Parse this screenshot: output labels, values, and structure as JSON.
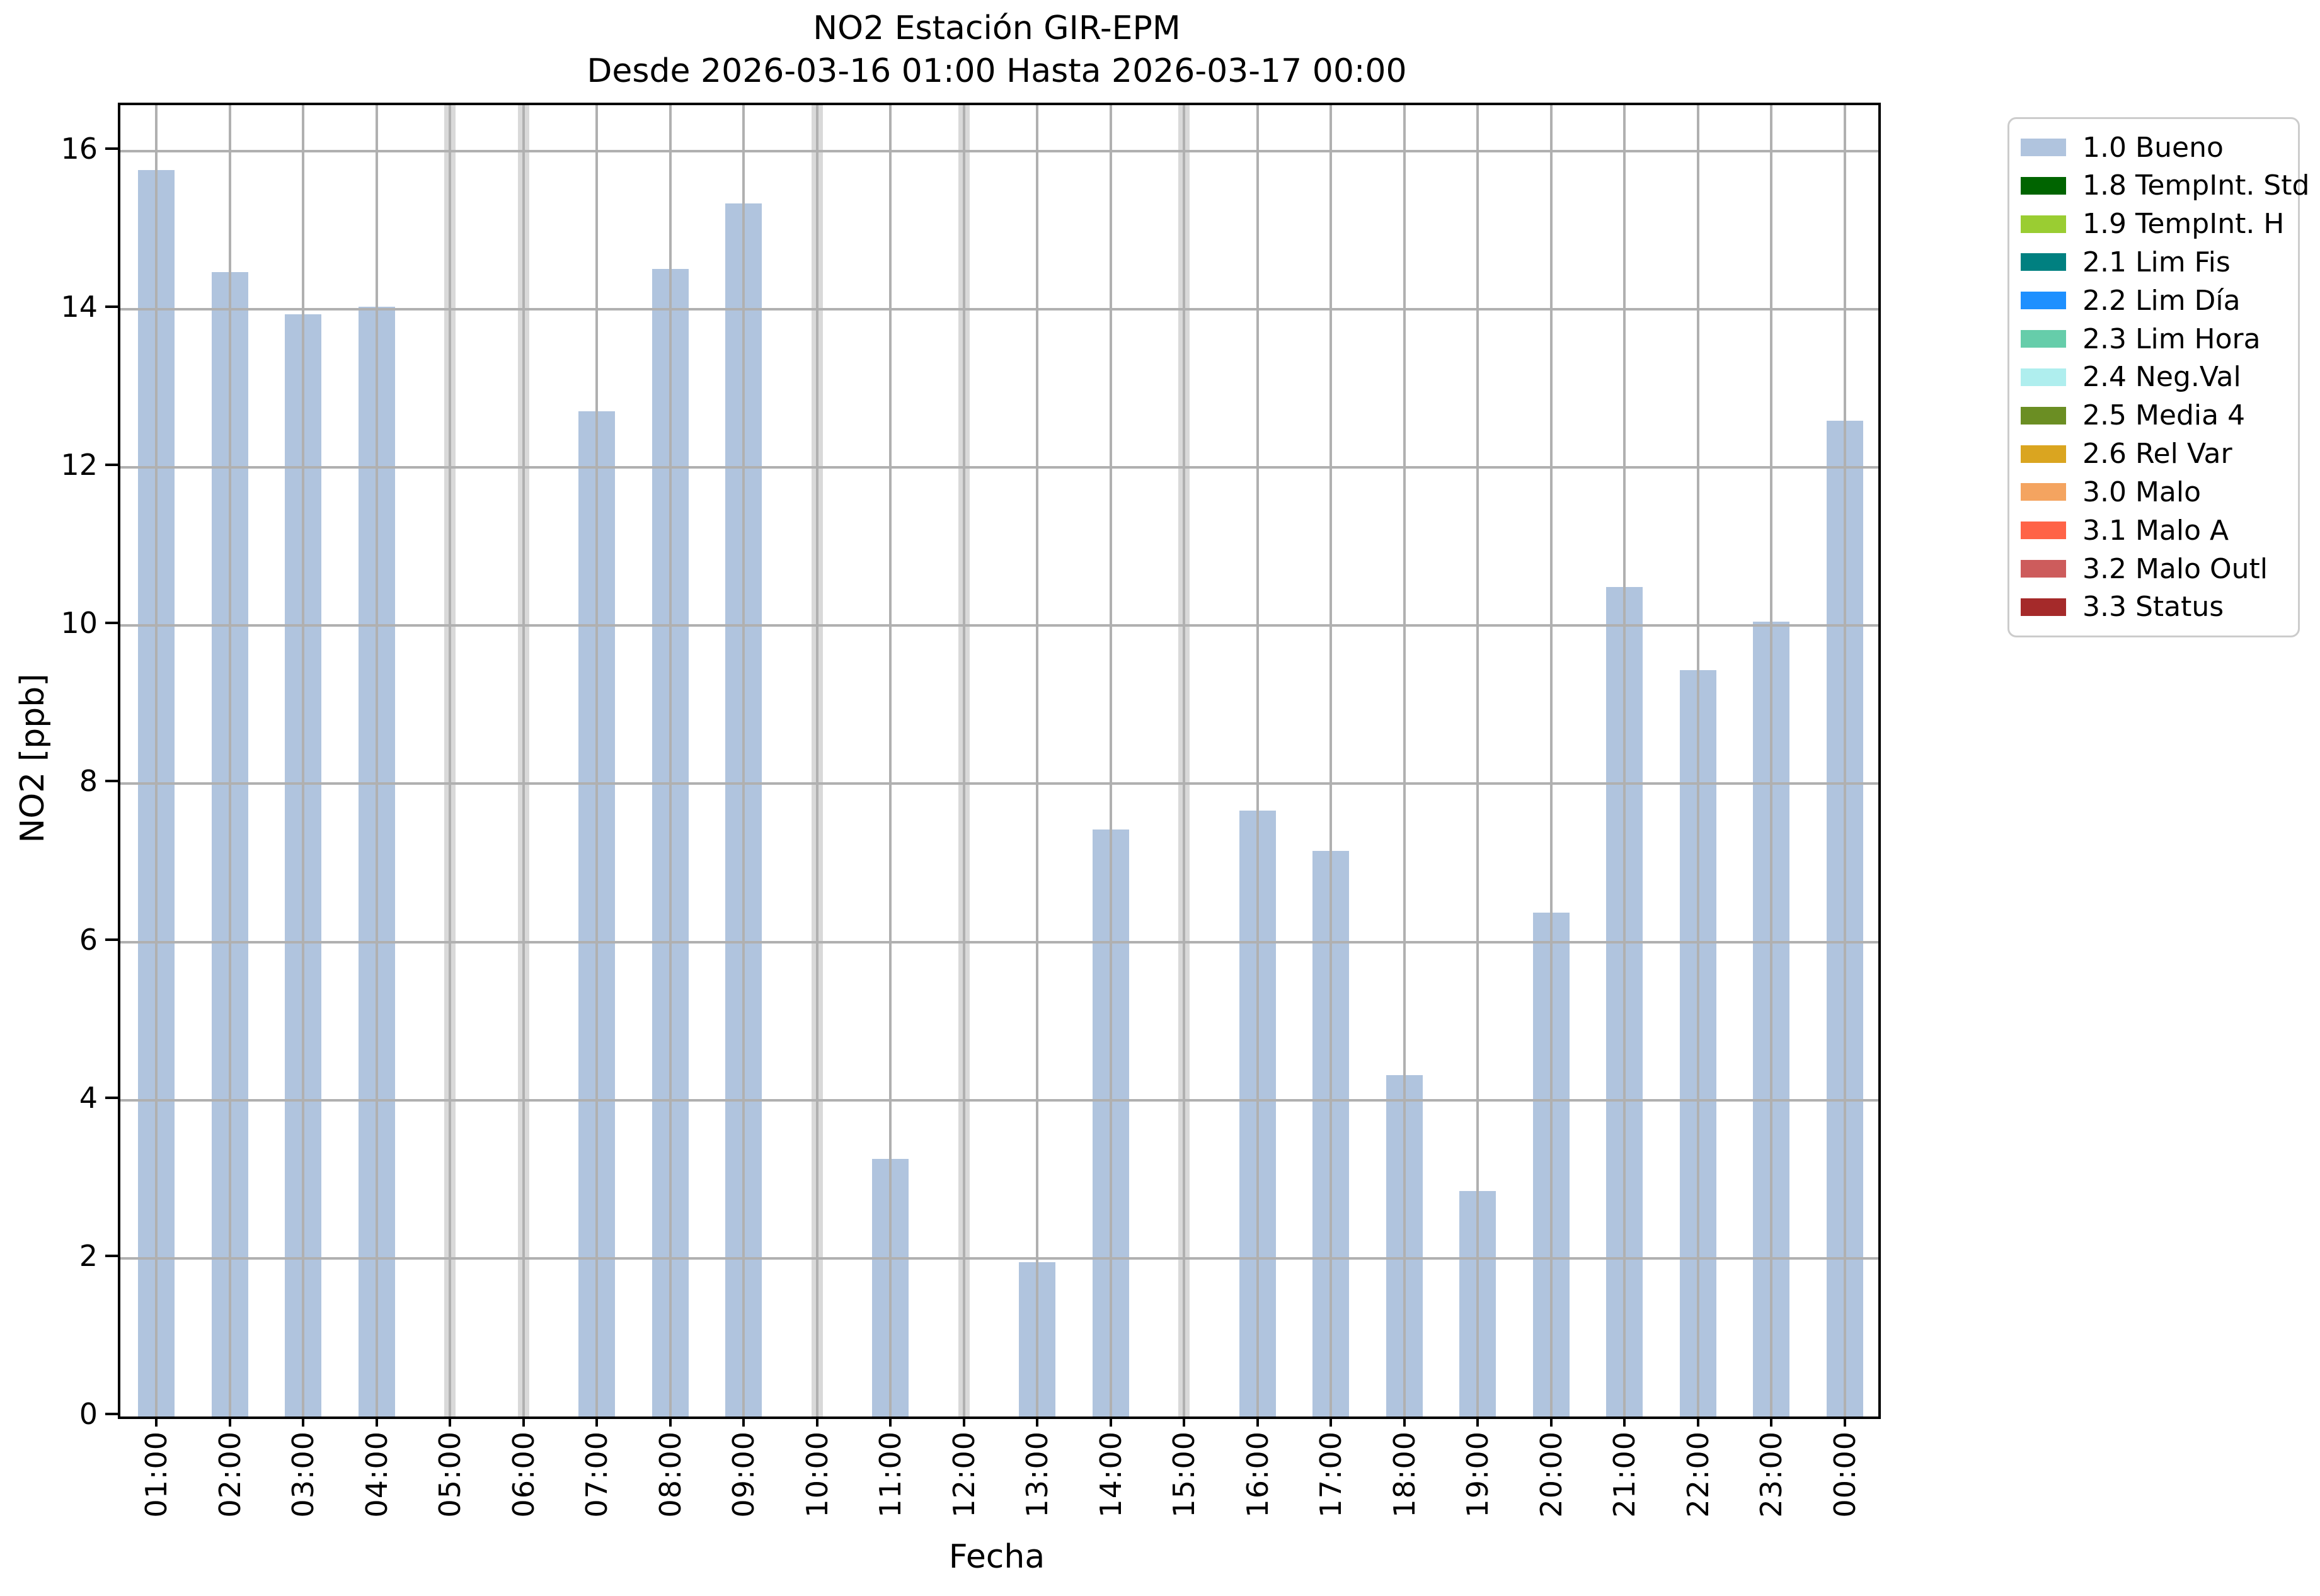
{
  "figure": {
    "background": "#ffffff",
    "title_line1": "NO2 Estación GIR-EPM",
    "title_line2": "Desde 2026-03-16 01:00 Hasta 2026-03-17 00:00"
  },
  "chart_data": {
    "type": "bar",
    "title": "NO2 Estación GIR-EPM",
    "subtitle": "Desde 2026-03-16 01:00 Hasta 2026-03-17 00:00",
    "xlabel": "Fecha",
    "ylabel": "NO2 [ppb]",
    "categories": [
      "01:00",
      "02:00",
      "03:00",
      "04:00",
      "05:00",
      "06:00",
      "07:00",
      "08:00",
      "09:00",
      "10:00",
      "11:00",
      "12:00",
      "13:00",
      "14:00",
      "15:00",
      "16:00",
      "17:00",
      "18:00",
      "19:00",
      "20:00",
      "21:00",
      "22:00",
      "23:00",
      "00:00"
    ],
    "values": [
      15.76,
      14.47,
      13.94,
      14.03,
      0,
      0,
      12.71,
      14.51,
      15.34,
      0,
      3.26,
      0,
      1.95,
      7.42,
      0,
      7.66,
      7.15,
      4.32,
      2.85,
      6.37,
      10.49,
      9.44,
      10.05,
      12.59
    ],
    "missing_hours": [
      "05:00",
      "06:00",
      "10:00",
      "12:00",
      "15:00"
    ],
    "yticks": [
      0,
      2,
      4,
      6,
      8,
      10,
      12,
      14,
      16
    ],
    "ylim": [
      0,
      16.58
    ],
    "grid": true,
    "grid_color": "#b0b0b0",
    "missing_band_color": "#d9d9d9",
    "bar_color": "#b0c4de",
    "legend_position": "outside upper right",
    "legend": [
      {
        "label": "1.0 Bueno",
        "color": "#b0c4de"
      },
      {
        "label": "1.8 TempInt. Std",
        "color": "#006400"
      },
      {
        "label": "1.9 TempInt. H",
        "color": "#9acd32"
      },
      {
        "label": "2.1 Lim Fis",
        "color": "#008080"
      },
      {
        "label": "2.2 Lim Día",
        "color": "#1e90ff"
      },
      {
        "label": "2.3 Lim Hora",
        "color": "#66cdaa"
      },
      {
        "label": "2.4 Neg.Val",
        "color": "#afeeee"
      },
      {
        "label": "2.5 Media 4",
        "color": "#6b8e23"
      },
      {
        "label": "2.6 Rel Var",
        "color": "#daa520"
      },
      {
        "label": "3.0 Malo",
        "color": "#f4a460"
      },
      {
        "label": "3.1 Malo A",
        "color": "#ff6347"
      },
      {
        "label": "3.2 Malo Outl",
        "color": "#cd5c5c"
      },
      {
        "label": "3.3 Status",
        "color": "#a52a2a"
      }
    ]
  }
}
